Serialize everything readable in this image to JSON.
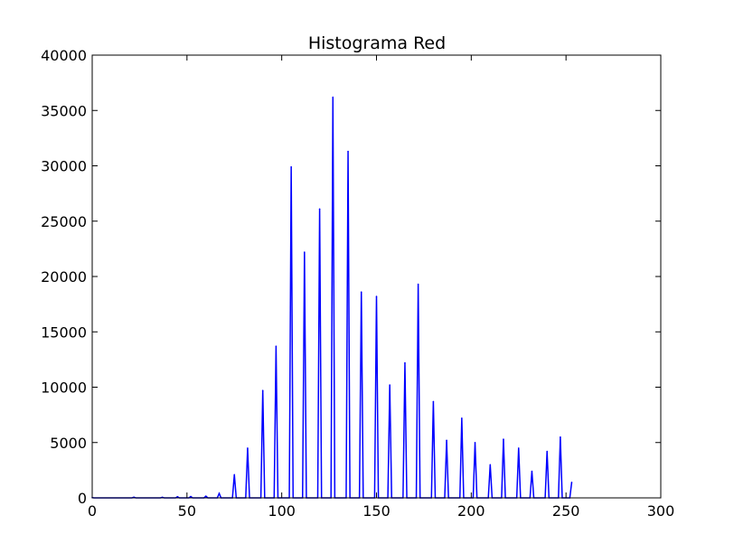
{
  "chart_data": {
    "type": "line",
    "title": "Histograma Red",
    "xlabel": "",
    "ylabel": "",
    "xlim": [
      0,
      300
    ],
    "ylim": [
      0,
      40000
    ],
    "x_ticks": [
      0,
      50,
      100,
      150,
      200,
      250,
      300
    ],
    "y_ticks": [
      0,
      5000,
      10000,
      15000,
      20000,
      25000,
      30000,
      35000,
      40000
    ],
    "grid": false,
    "legend": "none",
    "series": [
      {
        "color": "#0000ff",
        "peaks": [
          {
            "x": 0,
            "y": 20
          },
          {
            "x": 22,
            "y": 60
          },
          {
            "x": 37,
            "y": 50
          },
          {
            "x": 45,
            "y": 100
          },
          {
            "x": 52,
            "y": 120
          },
          {
            "x": 60,
            "y": 150
          },
          {
            "x": 67,
            "y": 400
          },
          {
            "x": 75,
            "y": 2100
          },
          {
            "x": 82,
            "y": 4500
          },
          {
            "x": 90,
            "y": 9700
          },
          {
            "x": 97,
            "y": 13700
          },
          {
            "x": 105,
            "y": 29900
          },
          {
            "x": 112,
            "y": 22200
          },
          {
            "x": 120,
            "y": 26100
          },
          {
            "x": 127,
            "y": 36200
          },
          {
            "x": 135,
            "y": 31300
          },
          {
            "x": 142,
            "y": 18600
          },
          {
            "x": 150,
            "y": 18200
          },
          {
            "x": 157,
            "y": 10200
          },
          {
            "x": 165,
            "y": 12200
          },
          {
            "x": 172,
            "y": 19300
          },
          {
            "x": 180,
            "y": 8700
          },
          {
            "x": 187,
            "y": 5200
          },
          {
            "x": 195,
            "y": 7200
          },
          {
            "x": 202,
            "y": 5000
          },
          {
            "x": 210,
            "y": 3000
          },
          {
            "x": 217,
            "y": 5300
          },
          {
            "x": 225,
            "y": 4500
          },
          {
            "x": 232,
            "y": 2400
          },
          {
            "x": 240,
            "y": 4200
          },
          {
            "x": 247,
            "y": 5500
          },
          {
            "x": 253,
            "y": 1400
          }
        ]
      }
    ]
  }
}
